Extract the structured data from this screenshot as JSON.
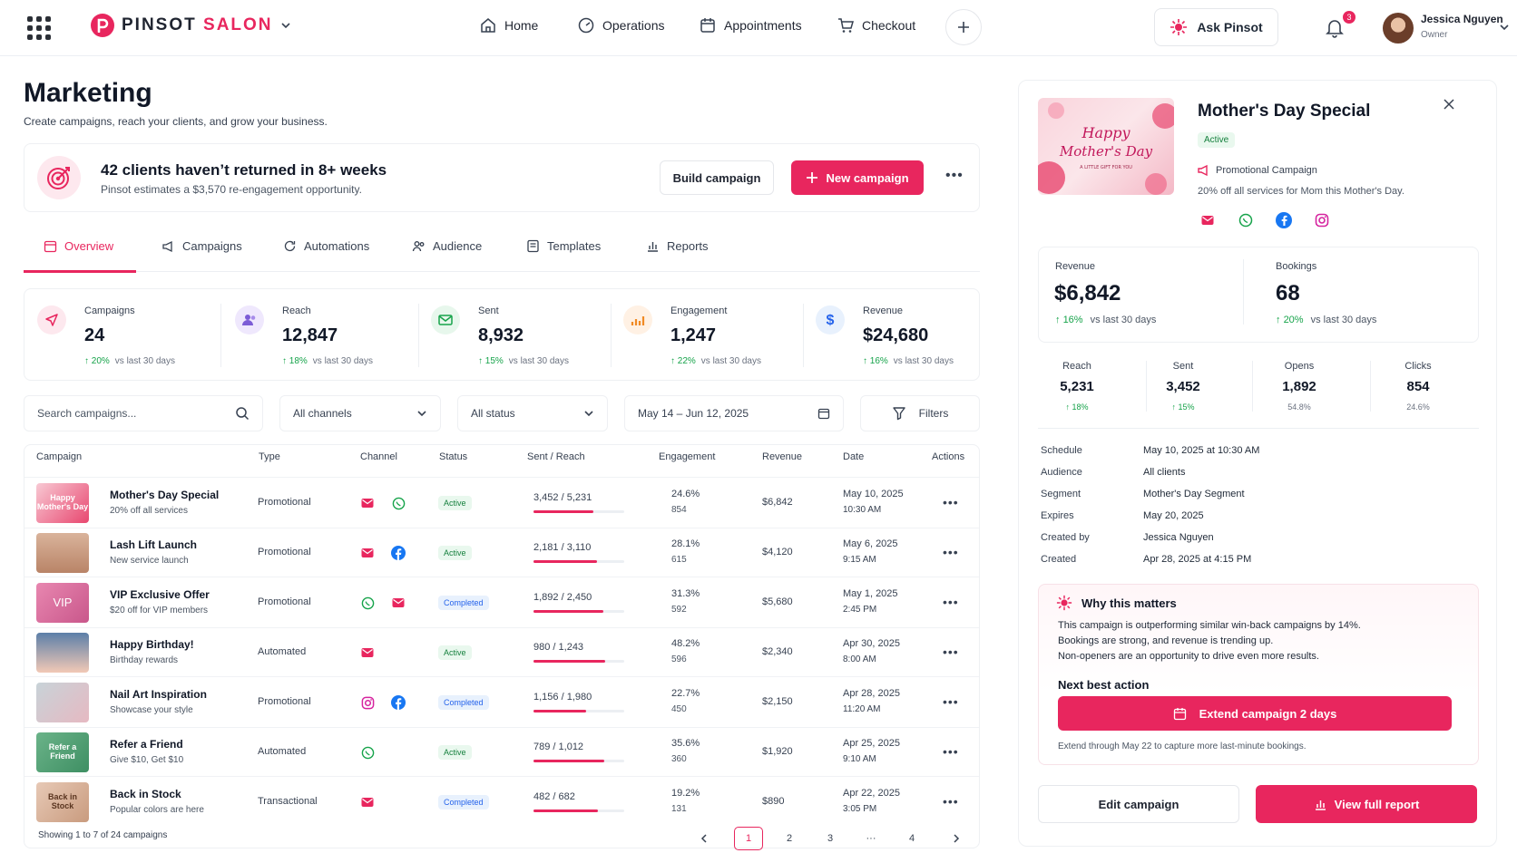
{
  "app": {
    "brand_name": "PINSOT",
    "brand_accent": "SALON",
    "brand_color": "#e8265e"
  },
  "nav": {
    "items": [
      {
        "label": "Home",
        "icon": "home-icon"
      },
      {
        "label": "Operations",
        "icon": "gauge-icon"
      },
      {
        "label": "Appointments",
        "icon": "calendar-icon"
      },
      {
        "label": "Checkout",
        "icon": "cart-icon"
      }
    ],
    "ask_label": "Ask Pinsot",
    "notification_count": "3",
    "user_name": "Jessica Nguyen",
    "user_role": "Owner"
  },
  "page": {
    "title": "Marketing",
    "subtitle": "Create campaigns, reach your clients, and grow your business."
  },
  "banner": {
    "title": "42 clients haven’t returned in 8+ weeks",
    "subtitle": "Pinsot estimates a $3,570 re-engagement opportunity.",
    "build_label": "Build campaign",
    "new_label": "New campaign"
  },
  "tabs": [
    {
      "label": "Overview"
    },
    {
      "label": "Campaigns"
    },
    {
      "label": "Automations"
    },
    {
      "label": "Audience"
    },
    {
      "label": "Templates"
    },
    {
      "label": "Reports"
    }
  ],
  "stats": [
    {
      "label": "Campaigns",
      "value": "24",
      "delta": "20%",
      "note": "vs last 30 days",
      "icon": "send-icon",
      "color": "#fde8ee"
    },
    {
      "label": "Reach",
      "value": "12,847",
      "delta": "18%",
      "note": "vs last 30 days",
      "icon": "users-icon",
      "color": "#efe8fd"
    },
    {
      "label": "Sent",
      "value": "8,932",
      "delta": "15%",
      "note": "vs last 30 days",
      "icon": "mail-icon",
      "color": "#e7f7ec"
    },
    {
      "label": "Engagement",
      "value": "1,247",
      "delta": "22%",
      "note": "vs last 30 days",
      "icon": "chart-icon",
      "color": "#fff1e4"
    },
    {
      "label": "Revenue",
      "value": "$24,680",
      "delta": "16%",
      "note": "vs last 30 days",
      "icon": "dollar-icon",
      "color": "#e8f1fd"
    }
  ],
  "filters": {
    "search_placeholder": "Search campaigns...",
    "channel": "All channels",
    "status": "All status",
    "date_range": "May 14 – Jun 12, 2025",
    "filters_label": "Filters"
  },
  "table": {
    "headers": [
      "Campaign",
      "Type",
      "Channel",
      "Status",
      "Sent / Reach",
      "Engagement",
      "Revenue",
      "Date",
      "Actions"
    ],
    "rows": [
      {
        "name": "Mother's Day Special",
        "sub": "20% off all services",
        "type": "Promotional",
        "channels": [
          "mail",
          "whatsapp"
        ],
        "status": "Active",
        "sent": "3,452 / 5,231",
        "progress": 0.66,
        "eng": "24.6%",
        "eng_n": "854",
        "revenue": "$6,842",
        "date": "May 10, 2025",
        "time": "10:30 AM",
        "thumb": "Happy Mother's Day"
      },
      {
        "name": "Lash Lift Launch",
        "sub": "New service launch",
        "type": "Promotional",
        "channels": [
          "mail",
          "facebook"
        ],
        "status": "Active",
        "sent": "2,181 / 3,110",
        "progress": 0.7,
        "eng": "28.1%",
        "eng_n": "615",
        "revenue": "$4,120",
        "date": "May 6, 2025",
        "time": "9:15 AM",
        "thumb": ""
      },
      {
        "name": "VIP Exclusive Offer",
        "sub": "$20 off for VIP members",
        "type": "Promotional",
        "channels": [
          "whatsapp",
          "mail"
        ],
        "status": "Completed",
        "sent": "1,892 / 2,450",
        "progress": 0.77,
        "eng": "31.3%",
        "eng_n": "592",
        "revenue": "$5,680",
        "date": "May 1, 2025",
        "time": "2:45 PM",
        "thumb": "VIP"
      },
      {
        "name": "Happy Birthday!",
        "sub": "Birthday rewards",
        "type": "Automated",
        "channels": [
          "mail"
        ],
        "status": "Active",
        "sent": "980 / 1,243",
        "progress": 0.79,
        "eng": "48.2%",
        "eng_n": "596",
        "revenue": "$2,340",
        "date": "Apr 30, 2025",
        "time": "8:00 AM",
        "thumb": ""
      },
      {
        "name": "Nail Art Inspiration",
        "sub": "Showcase your style",
        "type": "Promotional",
        "channels": [
          "instagram",
          "facebook"
        ],
        "status": "Completed",
        "sent": "1,156 / 1,980",
        "progress": 0.58,
        "eng": "22.7%",
        "eng_n": "450",
        "revenue": "$2,150",
        "date": "Apr 28, 2025",
        "time": "11:20 AM",
        "thumb": ""
      },
      {
        "name": "Refer a Friend",
        "sub": "Give $10, Get $10",
        "type": "Automated",
        "channels": [
          "whatsapp"
        ],
        "status": "Active",
        "sent": "789 / 1,012",
        "progress": 0.78,
        "eng": "35.6%",
        "eng_n": "360",
        "revenue": "$1,920",
        "date": "Apr 25, 2025",
        "time": "9:10 AM",
        "thumb": "Refer a Friend"
      },
      {
        "name": "Back in Stock",
        "sub": "Popular colors are here",
        "type": "Transactional",
        "channels": [
          "mail"
        ],
        "status": "Completed",
        "sent": "482 / 682",
        "progress": 0.71,
        "eng": "19.2%",
        "eng_n": "131",
        "revenue": "$890",
        "date": "Apr 22, 2025",
        "time": "3:05 PM",
        "thumb": "Back in Stock"
      }
    ],
    "footer": "Showing 1 to 7 of 24 campaigns",
    "pages": [
      "1",
      "2",
      "3",
      "···",
      "4"
    ]
  },
  "panel": {
    "hero_text": "Happy Mother's Day",
    "hero_small": "A LITTLE GIFT FOR YOU",
    "title": "Mother's Day Special",
    "status": "Active",
    "type": "Promotional Campaign",
    "description": "20% off all services for Mom this Mother's Day.",
    "revenue_label": "Revenue",
    "revenue_value": "$6,842",
    "revenue_delta": "16%",
    "bookings_label": "Bookings",
    "bookings_value": "68",
    "bookings_delta": "20%",
    "delta_note": "vs last 30 days",
    "small_metrics": [
      {
        "label": "Reach",
        "value": "5,231",
        "delta": "↑ 18%",
        "up": true
      },
      {
        "label": "Sent",
        "value": "3,452",
        "delta": "↑ 15%",
        "up": true
      },
      {
        "label": "Opens",
        "value": "1,892",
        "delta": "54.8%",
        "up": false
      },
      {
        "label": "Clicks",
        "value": "854",
        "delta": "24.6%",
        "up": false
      }
    ],
    "details": [
      {
        "label": "Schedule",
        "value": "May 10, 2025 at 10:30 AM"
      },
      {
        "label": "Audience",
        "value": "All clients"
      },
      {
        "label": "Segment",
        "value": "Mother's Day Segment"
      },
      {
        "label": "Expires",
        "value": "May 20, 2025"
      },
      {
        "label": "Created by",
        "value": "Jessica Nguyen"
      },
      {
        "label": "Created",
        "value": "Apr 28, 2025 at 4:15 PM"
      }
    ],
    "why_title": "Why this matters",
    "why_lines": [
      "This campaign is outperforming similar win-back campaigns by 14%.",
      "Bookings are strong, and revenue is trending up.",
      "Non-openers are an opportunity to drive even more results."
    ],
    "nba_title": "Next best action",
    "extend_label": "Extend campaign 2 days",
    "extend_note": "Extend through May 22 to capture more last-minute bookings.",
    "edit_label": "Edit campaign",
    "report_label": "View full report"
  }
}
